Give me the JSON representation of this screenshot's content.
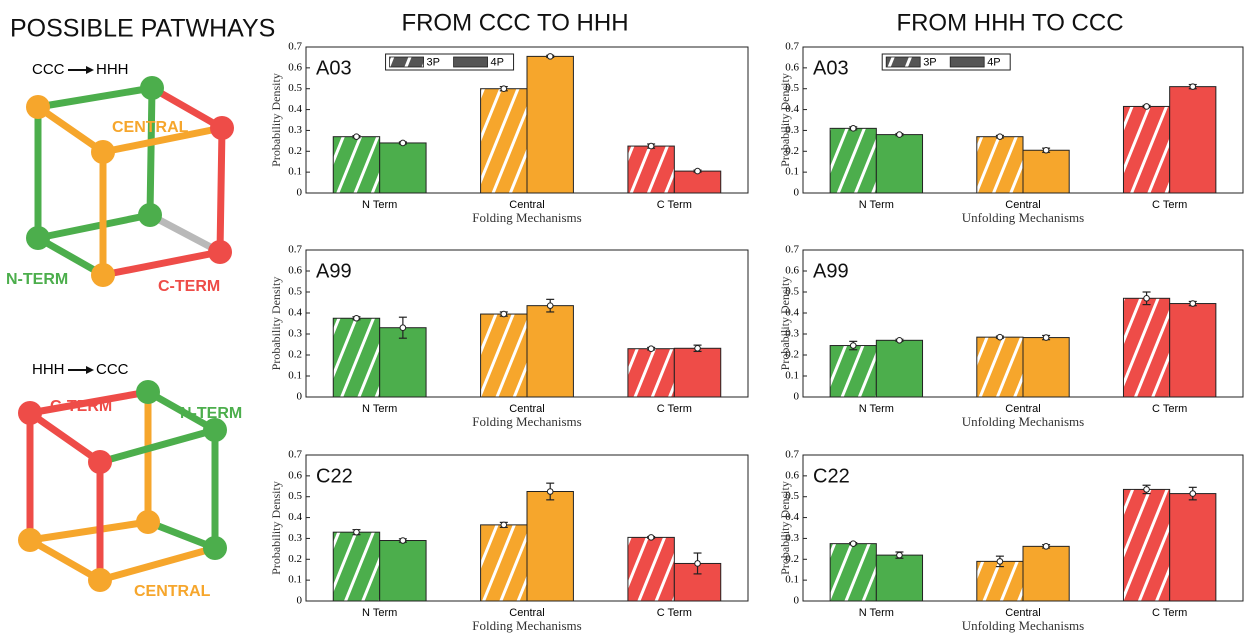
{
  "panel_title": "POSSIBLE PATWHAYS",
  "diagrams": [
    {
      "from": "CCC",
      "to": "HHH",
      "paths": [
        "CENTRAL",
        "N-TERM",
        "C-TERM"
      ]
    },
    {
      "from": "HHH",
      "to": "CCC",
      "paths": [
        "C-TERM",
        "N-TERM",
        "CENTRAL"
      ]
    }
  ],
  "column_titles": [
    "FROM CCC TO HHH",
    "FROM HHH TO CCC"
  ],
  "chart_data": [
    {
      "type": "bar",
      "annotation": "A03",
      "xlabel": "Folding Mechanisms",
      "ylabel": "Probability Density",
      "categories": [
        "N Term",
        "Central",
        "C Term"
      ],
      "category_colors": [
        "#4cae4c",
        "#f6a62c",
        "#ee4c48"
      ],
      "series": [
        {
          "name": "3P",
          "values": [
            0.27,
            0.5,
            0.225
          ],
          "errors": [
            0.005,
            0.01,
            0.01
          ]
        },
        {
          "name": "4P",
          "values": [
            0.24,
            0.655,
            0.105
          ],
          "errors": [
            0.005,
            0.005,
            0.005
          ]
        }
      ],
      "ylim": [
        0,
        0.7
      ],
      "yticks": [
        0,
        0.1,
        0.2,
        0.3,
        0.4,
        0.5,
        0.6,
        0.7
      ],
      "legend": "top"
    },
    {
      "type": "bar",
      "annotation": "A03",
      "xlabel": "Unfolding Mechanisms",
      "ylabel": "Probability Density",
      "categories": [
        "N Term",
        "Central",
        "C Term"
      ],
      "category_colors": [
        "#4cae4c",
        "#f6a62c",
        "#ee4c48"
      ],
      "series": [
        {
          "name": "3P",
          "values": [
            0.31,
            0.27,
            0.415
          ],
          "errors": [
            0.007,
            0.006,
            0.005
          ]
        },
        {
          "name": "4P",
          "values": [
            0.28,
            0.205,
            0.51
          ],
          "errors": [
            0.005,
            0.01,
            0.01
          ]
        }
      ],
      "ylim": [
        0,
        0.7
      ],
      "yticks": [
        0,
        0.1,
        0.2,
        0.3,
        0.4,
        0.5,
        0.6,
        0.7
      ],
      "legend": "top"
    },
    {
      "type": "bar",
      "annotation": "A99",
      "xlabel": "Folding Mechanisms",
      "ylabel": "Probability Density",
      "categories": [
        "N Term",
        "Central",
        "C Term"
      ],
      "category_colors": [
        "#4cae4c",
        "#f6a62c",
        "#ee4c48"
      ],
      "series": [
        {
          "name": "3P",
          "values": [
            0.375,
            0.395,
            0.23
          ],
          "errors": [
            0.007,
            0.01,
            0.006
          ]
        },
        {
          "name": "4P",
          "values": [
            0.33,
            0.435,
            0.232
          ],
          "errors": [
            0.05,
            0.03,
            0.015
          ]
        }
      ],
      "ylim": [
        0,
        0.7
      ],
      "yticks": [
        0,
        0.1,
        0.2,
        0.3,
        0.4,
        0.5,
        0.6,
        0.7
      ]
    },
    {
      "type": "bar",
      "annotation": "A99",
      "xlabel": "Unfolding Mechanisms",
      "ylabel": "Probability Density",
      "categories": [
        "N Term",
        "Central",
        "C Term"
      ],
      "category_colors": [
        "#4cae4c",
        "#f6a62c",
        "#ee4c48"
      ],
      "series": [
        {
          "name": "3P",
          "values": [
            0.245,
            0.285,
            0.47
          ],
          "errors": [
            0.02,
            0.005,
            0.03
          ]
        },
        {
          "name": "4P",
          "values": [
            0.27,
            0.283,
            0.445
          ],
          "errors": [
            0.005,
            0.01,
            0.01
          ]
        }
      ],
      "ylim": [
        0,
        0.7
      ],
      "yticks": [
        0,
        0.1,
        0.2,
        0.3,
        0.4,
        0.5,
        0.6,
        0.7
      ]
    },
    {
      "type": "bar",
      "annotation": "C22",
      "xlabel": "Folding Mechanisms",
      "ylabel": "Probability Density",
      "categories": [
        "N Term",
        "Central",
        "C Term"
      ],
      "category_colors": [
        "#4cae4c",
        "#f6a62c",
        "#ee4c48"
      ],
      "series": [
        {
          "name": "3P",
          "values": [
            0.33,
            0.365,
            0.305
          ],
          "errors": [
            0.012,
            0.012,
            0.004
          ]
        },
        {
          "name": "4P",
          "values": [
            0.29,
            0.525,
            0.18
          ],
          "errors": [
            0.008,
            0.04,
            0.05
          ]
        }
      ],
      "ylim": [
        0,
        0.7
      ],
      "yticks": [
        0,
        0.1,
        0.2,
        0.3,
        0.4,
        0.5,
        0.6,
        0.7
      ]
    },
    {
      "type": "bar",
      "annotation": "C22",
      "xlabel": "Unfolding Mechanisms",
      "ylabel": "Probability Density",
      "categories": [
        "N Term",
        "Central",
        "C Term"
      ],
      "category_colors": [
        "#4cae4c",
        "#f6a62c",
        "#ee4c48"
      ],
      "series": [
        {
          "name": "3P",
          "values": [
            0.275,
            0.19,
            0.535
          ],
          "errors": [
            0.005,
            0.025,
            0.02
          ]
        },
        {
          "name": "4P",
          "values": [
            0.22,
            0.262,
            0.515
          ],
          "errors": [
            0.015,
            0.008,
            0.03
          ]
        }
      ],
      "ylim": [
        0,
        0.7
      ],
      "yticks": [
        0,
        0.1,
        0.2,
        0.3,
        0.4,
        0.5,
        0.6,
        0.7
      ]
    }
  ]
}
